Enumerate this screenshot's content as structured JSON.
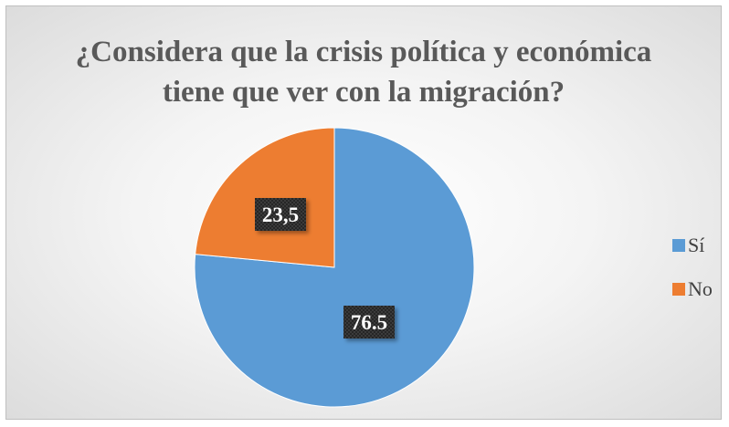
{
  "chart_data": {
    "type": "pie",
    "title_lines": [
      "¿Considera que la crisis política y económica",
      "tiene que ver con la migración?"
    ],
    "slices": [
      {
        "name": "Sí",
        "value": 76.5,
        "label": "76.5",
        "color": "#5b9bd5"
      },
      {
        "name": "No",
        "value": 23.5,
        "label": "23,5",
        "color": "#ed7d31"
      }
    ],
    "legend_position": "right"
  }
}
